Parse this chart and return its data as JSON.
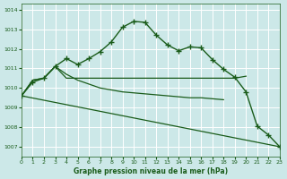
{
  "xlabel": "Graphe pression niveau de la mer (hPa)",
  "xlim": [
    0,
    23
  ],
  "ylim": [
    1006.5,
    1014.3
  ],
  "yticks": [
    1007,
    1008,
    1009,
    1010,
    1011,
    1012,
    1013,
    1014
  ],
  "xticks": [
    0,
    1,
    2,
    3,
    4,
    5,
    6,
    7,
    8,
    9,
    10,
    11,
    12,
    13,
    14,
    15,
    16,
    17,
    18,
    19,
    20,
    21,
    22,
    23
  ],
  "bg_color": "#cce8e8",
  "grid_color": "#ffffff",
  "line_color": "#1a5c1a",
  "series_main": [
    1009.6,
    1010.3,
    1010.5,
    1011.1,
    1011.5,
    1011.2,
    1011.5,
    1011.85,
    1012.35,
    1013.1,
    1013.4,
    1013.35,
    1012.7,
    1012.2,
    1011.9,
    1012.1,
    1012.05,
    1011.45,
    1010.95,
    1010.55,
    1009.8,
    1008.05,
    1007.6,
    1007.0
  ],
  "series_flat": [
    1009.6,
    1010.4,
    1010.5,
    1011.1,
    1010.5,
    1010.5,
    1010.5,
    1010.5,
    1010.5,
    1010.5,
    1010.5,
    1010.5,
    1010.5,
    1010.5,
    1010.5,
    1010.5,
    1010.5,
    1010.5,
    1010.5,
    1010.5,
    1010.6,
    null,
    null,
    null
  ],
  "series_decline1": [
    1009.6,
    1010.4,
    1010.5,
    1011.1,
    1010.7,
    1010.4,
    1010.2,
    1010.0,
    1009.9,
    1009.8,
    1009.75,
    1009.7,
    1009.65,
    1009.6,
    1009.55,
    1009.5,
    1009.5,
    1009.45,
    1009.4,
    null,
    null,
    null,
    null,
    null
  ]
}
